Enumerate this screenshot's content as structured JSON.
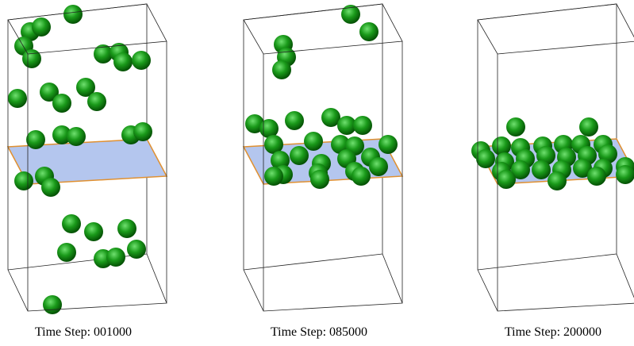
{
  "panels": [
    {
      "caption": "Time Step: 001000"
    },
    {
      "caption": "Time Step: 085000"
    },
    {
      "caption": "Time Step: 200000"
    }
  ]
}
